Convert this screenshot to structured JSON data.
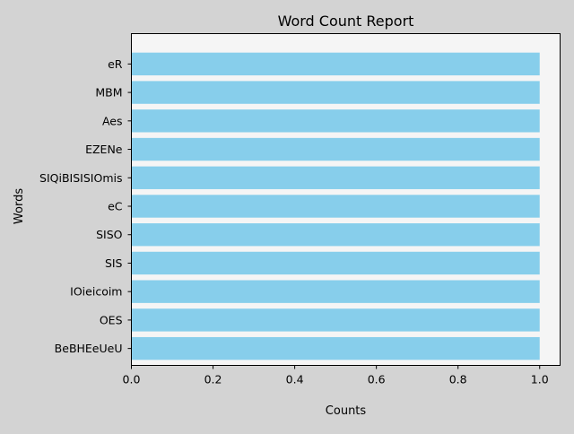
{
  "chart_data": {
    "type": "bar",
    "orientation": "horizontal",
    "title": "Word Count Report",
    "xlabel": "Counts",
    "ylabel": "Words",
    "categories": [
      "eR",
      "MBM",
      "Aes",
      "EZENe",
      "SIQiBISISIOmis",
      "eC",
      "SISO",
      "SIS",
      "IOieicoim",
      "OES",
      "BeBHEeUeU"
    ],
    "values": [
      1,
      1,
      1,
      1,
      1,
      1,
      1,
      1,
      1,
      1,
      1
    ],
    "xlim": [
      0,
      1.05
    ],
    "xticks": [
      0.0,
      0.2,
      0.4,
      0.6,
      0.8,
      1.0
    ],
    "xtick_labels": [
      "0.0",
      "0.2",
      "0.4",
      "0.6",
      "0.8",
      "1.0"
    ],
    "grid": false,
    "colors": {
      "bar": "#87ceeb",
      "plot_background": "#f5f5f5",
      "figure_background": "#d3d3d3"
    }
  }
}
